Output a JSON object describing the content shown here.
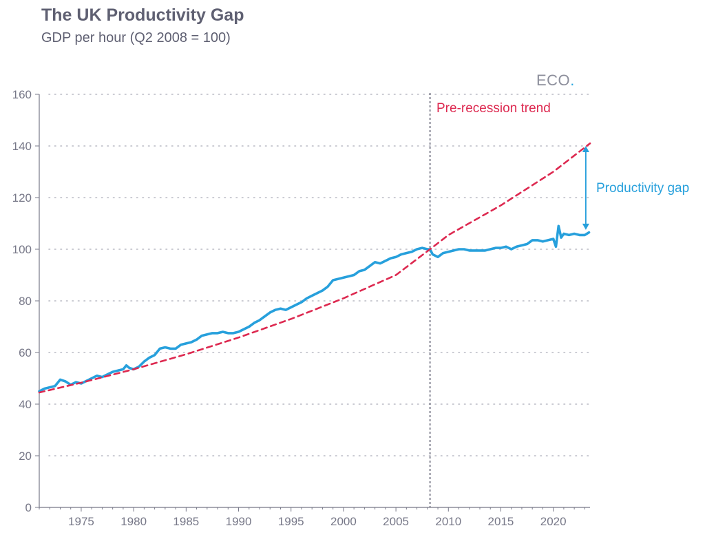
{
  "header": {
    "title": "The UK Productivity Gap",
    "subtitle": "GDP per hour (Q2 2008 = 100)"
  },
  "logo": {
    "text": "ECO",
    "dot": "."
  },
  "colors": {
    "actual": "#27a0dc",
    "trend": "#dd2950",
    "axis": "#777888",
    "grid": "#b9bac4",
    "recession_line": "#5f6072"
  },
  "annotations": {
    "trend_label": "Pre-recession trend",
    "gap_label": "Productivity gap"
  },
  "chart_data": {
    "type": "line",
    "title": "The UK Productivity Gap",
    "subtitle": "GDP per hour (Q2 2008 = 100)",
    "xlim": [
      1971,
      2023.5
    ],
    "ylim": [
      0,
      160
    ],
    "x_ticks": [
      1975,
      1980,
      1985,
      1990,
      1995,
      2000,
      2005,
      2010,
      2015,
      2020
    ],
    "y_ticks": [
      0,
      20,
      40,
      60,
      80,
      100,
      120,
      140,
      160
    ],
    "grid": "horizontal dotted",
    "recession_marker_x": 2008.25,
    "series": [
      {
        "name": "GDP per hour",
        "style": "solid",
        "x": [
          1971,
          1971.5,
          1972,
          1972.5,
          1973,
          1973.5,
          1974,
          1974.5,
          1975,
          1975.5,
          1976,
          1976.5,
          1977,
          1977.5,
          1978,
          1978.5,
          1979,
          1979.3,
          1979.6,
          1980,
          1980.5,
          1981,
          1981.5,
          1982,
          1982.5,
          1983,
          1983.5,
          1984,
          1984.5,
          1985,
          1985.5,
          1986,
          1986.5,
          1987,
          1987.5,
          1988,
          1988.5,
          1989,
          1989.5,
          1990,
          1990.5,
          1991,
          1991.5,
          1992,
          1992.5,
          1993,
          1993.5,
          1994,
          1994.5,
          1995,
          1995.5,
          1996,
          1996.5,
          1997,
          1997.5,
          1998,
          1998.5,
          1999,
          1999.5,
          2000,
          2000.5,
          2001,
          2001.5,
          2002,
          2002.5,
          2003,
          2003.5,
          2004,
          2004.5,
          2005,
          2005.5,
          2006,
          2006.5,
          2007,
          2007.5,
          2008,
          2008.25,
          2008.5,
          2009,
          2009.5,
          2010,
          2010.5,
          2011,
          2011.5,
          2012,
          2012.5,
          2013,
          2013.5,
          2014,
          2014.5,
          2015,
          2015.5,
          2016,
          2016.5,
          2017,
          2017.5,
          2018,
          2018.5,
          2019,
          2019.5,
          2020,
          2020.25,
          2020.5,
          2020.75,
          2021,
          2021.5,
          2022,
          2022.5,
          2023,
          2023.4
        ],
        "y": [
          45,
          46,
          46.5,
          47,
          49.5,
          48.8,
          47.5,
          48.5,
          48,
          49,
          50,
          51,
          50.5,
          51.5,
          52.5,
          53,
          53.5,
          55,
          54,
          53.5,
          54.5,
          56.5,
          58,
          59,
          61.5,
          62,
          61.5,
          61.5,
          63,
          63.5,
          64,
          65,
          66.5,
          67,
          67.5,
          67.5,
          68,
          67.5,
          67.5,
          68,
          69,
          70,
          71.5,
          72.5,
          74,
          75.5,
          76.5,
          77,
          76.5,
          77.5,
          78.5,
          79.5,
          81,
          82,
          83,
          84,
          85.5,
          88,
          88.5,
          89,
          89.5,
          90,
          91.5,
          92,
          93.5,
          95,
          94.5,
          95.5,
          96.5,
          97,
          98,
          98.5,
          99,
          100,
          100.5,
          100,
          100,
          98,
          97,
          98.5,
          99,
          99.5,
          100,
          100,
          99.5,
          99.5,
          99.5,
          99.5,
          100,
          100.5,
          100.5,
          101,
          100,
          101,
          101.5,
          102,
          103.5,
          103.5,
          103,
          103.5,
          104,
          101,
          109,
          104.5,
          106,
          105.5,
          106,
          105.5,
          105.5,
          106.5
        ]
      },
      {
        "name": "Pre-recession trend",
        "style": "dashed",
        "x": [
          1971,
          1975,
          1980,
          1985,
          1990,
          1995,
          2000,
          2005,
          2008.25,
          2010,
          2015,
          2020,
          2023.5
        ],
        "y": [
          44.5,
          48.3,
          53.5,
          59.3,
          65.8,
          73,
          81,
          90,
          100,
          105.5,
          117,
          130,
          141
        ]
      }
    ],
    "gap_arrow": {
      "x": 2023.1,
      "from": 107.5,
      "to": 140
    }
  }
}
